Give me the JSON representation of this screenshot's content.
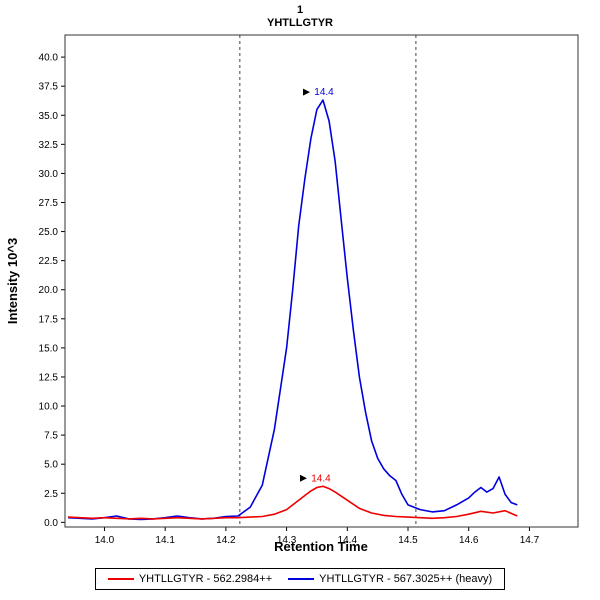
{
  "title": {
    "index": "1",
    "peptide": "YHTLLGTYR"
  },
  "axes": {
    "x_label": "Retention Time",
    "y_label": "Intensity 10^3"
  },
  "legend": [
    {
      "label": "YHTLLGTYR - 562.2984++",
      "color": "#ee0000"
    },
    {
      "label": "YHTLLGTYR - 567.3025++ (heavy)",
      "color": "#0000dd"
    }
  ],
  "chart_data": {
    "type": "line",
    "title": "1 YHTLLGTYR",
    "xlabel": "Retention Time",
    "ylabel": "Intensity 10^3",
    "xlim": [
      13.935,
      14.78
    ],
    "ylim": [
      -0.4,
      41.9
    ],
    "x_ticks": [
      "14.0",
      "14.1",
      "14.2",
      "14.3",
      "14.4",
      "14.5",
      "14.6",
      "14.7"
    ],
    "y_ticks": [
      "0.0",
      "2.5",
      "5.0",
      "7.5",
      "10.0",
      "12.5",
      "15.0",
      "17.5",
      "20.0",
      "22.5",
      "25.0",
      "27.5",
      "30.0",
      "32.5",
      "35.0",
      "37.5",
      "40.0"
    ],
    "grid": false,
    "legend_position": "bottom",
    "boundaries": [
      14.223,
      14.513
    ],
    "annotations": [
      {
        "text": "14.4",
        "x": 14.36,
        "y": 36.3,
        "color": "#0000dd"
      },
      {
        "text": "14.4",
        "x": 14.355,
        "y": 3.1,
        "color": "#ee0000"
      }
    ],
    "series": [
      {
        "id": "heavy",
        "name": "YHTLLGTYR - 567.3025++ (heavy)",
        "color": "#0000dd",
        "points": [
          [
            13.94,
            0.4
          ],
          [
            13.96,
            0.35
          ],
          [
            13.98,
            0.3
          ],
          [
            14.0,
            0.4
          ],
          [
            14.02,
            0.55
          ],
          [
            14.04,
            0.3
          ],
          [
            14.06,
            0.25
          ],
          [
            14.08,
            0.3
          ],
          [
            14.1,
            0.4
          ],
          [
            14.12,
            0.55
          ],
          [
            14.14,
            0.4
          ],
          [
            14.16,
            0.3
          ],
          [
            14.18,
            0.35
          ],
          [
            14.2,
            0.5
          ],
          [
            14.22,
            0.55
          ],
          [
            14.24,
            1.3
          ],
          [
            14.26,
            3.2
          ],
          [
            14.28,
            8.0
          ],
          [
            14.3,
            15.0
          ],
          [
            14.31,
            20.0
          ],
          [
            14.32,
            25.5
          ],
          [
            14.33,
            29.5
          ],
          [
            14.34,
            33.0
          ],
          [
            14.35,
            35.5
          ],
          [
            14.36,
            36.3
          ],
          [
            14.37,
            34.5
          ],
          [
            14.38,
            31.0
          ],
          [
            14.39,
            26.0
          ],
          [
            14.4,
            21.0
          ],
          [
            14.41,
            16.5
          ],
          [
            14.42,
            12.5
          ],
          [
            14.43,
            9.5
          ],
          [
            14.44,
            7.0
          ],
          [
            14.45,
            5.5
          ],
          [
            14.46,
            4.6
          ],
          [
            14.47,
            4.0
          ],
          [
            14.48,
            3.6
          ],
          [
            14.49,
            2.4
          ],
          [
            14.5,
            1.5
          ],
          [
            14.52,
            1.1
          ],
          [
            14.54,
            0.9
          ],
          [
            14.56,
            1.0
          ],
          [
            14.58,
            1.5
          ],
          [
            14.6,
            2.1
          ],
          [
            14.61,
            2.6
          ],
          [
            14.62,
            3.0
          ],
          [
            14.63,
            2.6
          ],
          [
            14.64,
            2.9
          ],
          [
            14.65,
            3.9
          ],
          [
            14.66,
            2.4
          ],
          [
            14.67,
            1.7
          ],
          [
            14.68,
            1.5
          ]
        ]
      },
      {
        "id": "light",
        "name": "YHTLLGTYR - 562.2984++",
        "color": "#ee0000",
        "points": [
          [
            13.94,
            0.45
          ],
          [
            13.96,
            0.4
          ],
          [
            13.98,
            0.35
          ],
          [
            14.0,
            0.4
          ],
          [
            14.02,
            0.35
          ],
          [
            14.04,
            0.3
          ],
          [
            14.06,
            0.35
          ],
          [
            14.08,
            0.3
          ],
          [
            14.1,
            0.35
          ],
          [
            14.12,
            0.4
          ],
          [
            14.14,
            0.35
          ],
          [
            14.16,
            0.3
          ],
          [
            14.18,
            0.35
          ],
          [
            14.2,
            0.4
          ],
          [
            14.22,
            0.4
          ],
          [
            14.24,
            0.45
          ],
          [
            14.26,
            0.5
          ],
          [
            14.28,
            0.7
          ],
          [
            14.3,
            1.1
          ],
          [
            14.32,
            1.9
          ],
          [
            14.34,
            2.7
          ],
          [
            14.35,
            3.0
          ],
          [
            14.36,
            3.1
          ],
          [
            14.37,
            2.9
          ],
          [
            14.38,
            2.6
          ],
          [
            14.4,
            1.9
          ],
          [
            14.42,
            1.2
          ],
          [
            14.44,
            0.8
          ],
          [
            14.46,
            0.6
          ],
          [
            14.48,
            0.5
          ],
          [
            14.5,
            0.45
          ],
          [
            14.52,
            0.4
          ],
          [
            14.54,
            0.35
          ],
          [
            14.56,
            0.4
          ],
          [
            14.58,
            0.5
          ],
          [
            14.6,
            0.7
          ],
          [
            14.62,
            0.95
          ],
          [
            14.64,
            0.8
          ],
          [
            14.66,
            1.0
          ],
          [
            14.68,
            0.55
          ]
        ]
      }
    ]
  }
}
